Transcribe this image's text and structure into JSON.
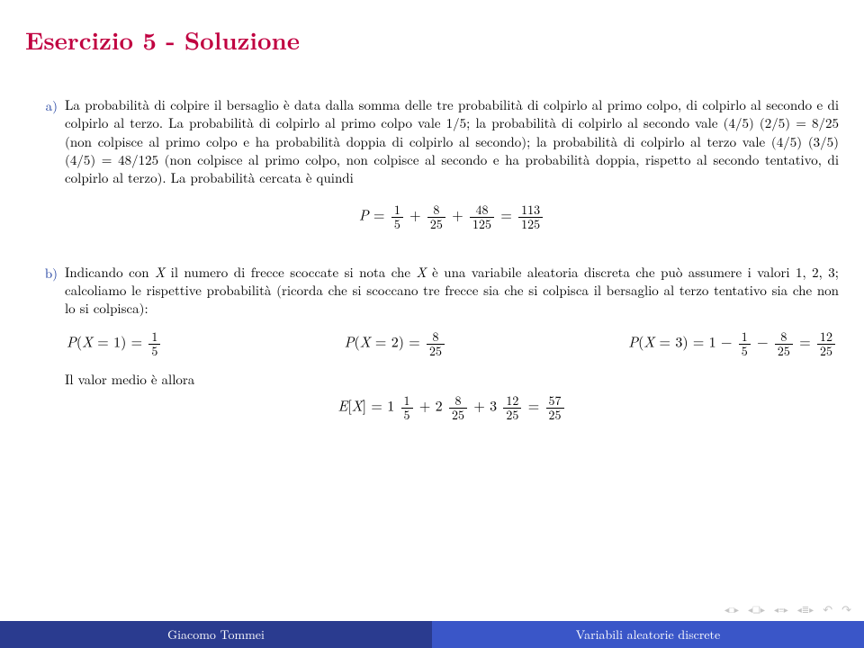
{
  "title_color": "#c00040",
  "marker_color": "#2040a0",
  "footer_author_bg": "#2a3b8f",
  "footer_topic_bg": "#3a56c8",
  "footer_text_color": "#ffffff",
  "title": "Esercizio 5 - Soluzione",
  "item_a": {
    "marker": "a)",
    "text": "La probabilità di colpire il bersaglio è data dalla somma delle tre probabilità di colpirlo al primo colpo, di colpirlo al secondo e di colpirlo al terzo. La probabilità di colpirlo al primo colpo vale 1/5; la probabilità di colpirlo al secondo vale (4/5) (2/5) = 8/25 (non colpisce al primo colpo e ha probabilità doppia di colpirlo al secondo); la probabilità di colpirlo al terzo vale (4/5) (3/5) (4/5) = 48/125 (non colpisce al primo colpo, non colpisce al secondo e ha probabilità doppia, rispetto al secondo tentativo, di colpirlo al terzo). La probabilità cercata è quindi"
  },
  "eq_a": {
    "lhs": "P =",
    "f1n": "1",
    "f1d": "5",
    "f2n": "8",
    "f2d": "25",
    "f3n": "48",
    "f3d": "125",
    "rn": "113",
    "rd": "125"
  },
  "item_b": {
    "marker": "b)",
    "text_pre": "Indicando con ",
    "text_mid1": " il numero di frecce scoccate si nota che ",
    "text_mid2": " è una variabile aleatoria discreta che può assumere i valori 1, 2, 3; calcoliamo le rispettive probabilità (ricorda che si scoccano tre frecce sia che si colpisca il bersaglio al terzo tentativo sia che non lo si colpisca):",
    "X": "X"
  },
  "eq_b": {
    "p1_l": "P(X = 1) =",
    "p1n": "1",
    "p1d": "5",
    "p2_l": "P(X = 2) =",
    "p2n": "8",
    "p2d": "25",
    "p3_l": "P(X = 3) = 1 −",
    "p3an": "1",
    "p3ad": "5",
    "p3bn": "8",
    "p3bd": "25",
    "p3rn": "12",
    "p3rd": "25"
  },
  "mean_label": "Il valor medio è allora",
  "eq_mean": {
    "lhs": "E[X] = 1",
    "f1n": "1",
    "f1d": "5",
    "t2": "+ 2",
    "f2n": "8",
    "f2d": "25",
    "t3": "+ 3",
    "f3n": "12",
    "f3d": "25",
    "rn": "57",
    "rd": "25"
  },
  "footer": {
    "author": "Giacomo Tommei",
    "topic": "Variabili aleatorie discrete"
  }
}
